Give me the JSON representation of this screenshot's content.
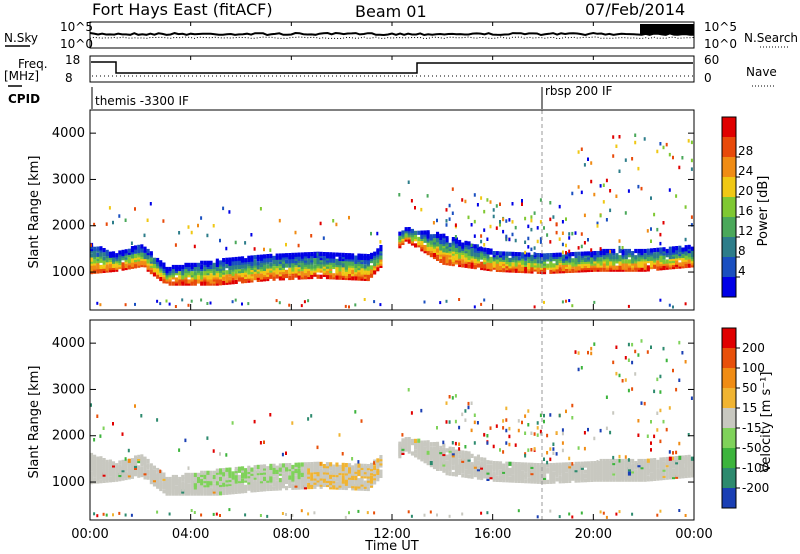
{
  "header": {
    "title": "Fort Hays East (fitACF)",
    "beam": "Beam 01",
    "date": "07/Feb/2014"
  },
  "top_panels": {
    "nsky_label": "N.Sky",
    "nsky_tick_top": "10^5",
    "nsky_tick_bottom": "10^0",
    "nsearch_label": "N.Search",
    "nsearch_tick_top": "10^5",
    "nsearch_tick_bottom": "10^0",
    "freq_label": "Freq.",
    "freq_unit": "[MHz]",
    "freq_tick_top": "18",
    "freq_tick_bottom": "8",
    "nave_label": "Nave",
    "nave_tick_top": "60",
    "nave_tick_bottom": "0",
    "cpid_label": "CPID",
    "cpid_segments": [
      {
        "label": "themis -3300 IF",
        "start_hour": 0,
        "end_hour": 18
      },
      {
        "label": "rbsp 200 IF",
        "start_hour": 18,
        "end_hour": 24
      }
    ]
  },
  "power_panel": {
    "ylabel": "Slant Range [km]",
    "yticks": [
      "1000",
      "2000",
      "3000",
      "4000"
    ],
    "colorbar_label": "Power [dB]",
    "colorbar_ticks": [
      "4",
      "8",
      "12",
      "16",
      "20",
      "24",
      "28"
    ],
    "colorbar_colors": [
      "#0000e6",
      "#1a4fc0",
      "#2d7d8a",
      "#4aa85a",
      "#7fc832",
      "#f0c814",
      "#f08c14",
      "#e84a0a",
      "#e00000"
    ]
  },
  "velocity_panel": {
    "ylabel": "Slant Range [km]",
    "yticks": [
      "1000",
      "2000",
      "3000",
      "4000"
    ],
    "colorbar_label": "Velocity [m s⁻¹]",
    "colorbar_ticks": [
      "200",
      "100",
      "50",
      "15",
      "-15",
      "-50",
      "-100",
      "-200"
    ],
    "colorbar_colors": [
      "#1a3fb4",
      "#2d8a6e",
      "#3cb43c",
      "#7fd25a",
      "#c8c8c0",
      "#f0b432",
      "#f08c14",
      "#e8500a",
      "#e00000"
    ]
  },
  "xaxis": {
    "label": "Time UT",
    "ticks": [
      "00:00",
      "04:00",
      "08:00",
      "12:00",
      "16:00",
      "20:00",
      "00:00"
    ]
  },
  "chart_data": {
    "type": "heatmap",
    "title": "Fort Hays East (fitACF)",
    "xlabel": "Time UT",
    "ylabel": "Slant Range [km]",
    "xlim_hours": [
      0,
      24
    ],
    "ylim_km": [
      180,
      4500
    ],
    "panels": [
      "Power [dB]",
      "Velocity [m s⁻¹]"
    ],
    "power_range_db": [
      0,
      30
    ],
    "velocity_range": [
      -250,
      250
    ],
    "scatter_band_approx": [
      {
        "hour": 0.0,
        "lower_km": 1000,
        "upper_km": 1600
      },
      {
        "hour": 1.0,
        "lower_km": 1050,
        "upper_km": 1400
      },
      {
        "hour": 2.0,
        "lower_km": 1150,
        "upper_km": 1600
      },
      {
        "hour": 3.0,
        "lower_km": 750,
        "upper_km": 1100
      },
      {
        "hour": 5.0,
        "lower_km": 750,
        "upper_km": 1250
      },
      {
        "hour": 7.0,
        "lower_km": 850,
        "upper_km": 1350
      },
      {
        "hour": 9.0,
        "lower_km": 900,
        "upper_km": 1400
      },
      {
        "hour": 11.0,
        "lower_km": 850,
        "upper_km": 1350
      },
      {
        "hour": 12.5,
        "lower_km": 1700,
        "upper_km": 1950
      },
      {
        "hour": 14.0,
        "lower_km": 1200,
        "upper_km": 1800
      },
      {
        "hour": 16.0,
        "lower_km": 1050,
        "upper_km": 1450
      },
      {
        "hour": 18.0,
        "lower_km": 1000,
        "upper_km": 1400
      },
      {
        "hour": 20.0,
        "lower_km": 1050,
        "upper_km": 1450
      },
      {
        "hour": 22.0,
        "lower_km": 1050,
        "upper_km": 1500
      },
      {
        "hour": 24.0,
        "lower_km": 1150,
        "upper_km": 1550
      }
    ]
  }
}
